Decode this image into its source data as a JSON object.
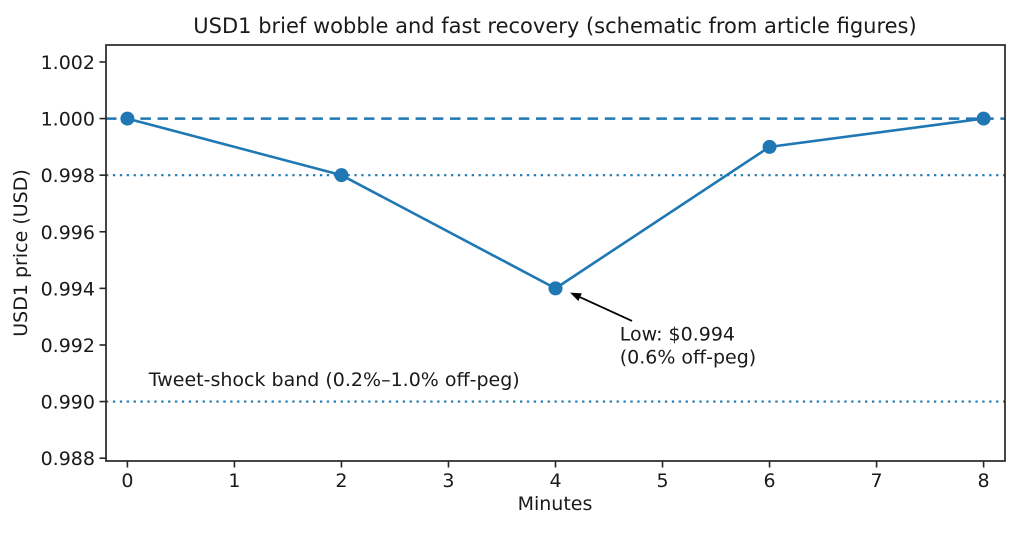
{
  "chart_data": {
    "type": "line",
    "title": "USD1 brief wobble and fast recovery (schematic from article figures)",
    "xlabel": "Minutes",
    "ylabel": "USD1 price (USD)",
    "x": [
      0,
      2,
      4,
      6,
      8
    ],
    "y": [
      1.0,
      0.998,
      0.994,
      0.999,
      1.0
    ],
    "xticks": [
      0,
      1,
      2,
      3,
      4,
      5,
      6,
      7,
      8
    ],
    "yticks": [
      0.988,
      0.99,
      0.992,
      0.994,
      0.996,
      0.998,
      1.0,
      1.002
    ],
    "ytick_decimals": 3,
    "xlim": [
      -0.2,
      8.2
    ],
    "ylim": [
      0.9879,
      1.0026
    ],
    "grid": false,
    "legend": null,
    "line_color": "#1f77b4",
    "marker_color": "#1f77b4",
    "marker": "circle",
    "reference_lines": [
      {
        "name": "peg-reference-line",
        "y": 1.0,
        "style": "dashed",
        "color": "#1f77b4"
      },
      {
        "name": "band-upper-line",
        "y": 0.998,
        "style": "dotted",
        "color": "#1f77b4"
      },
      {
        "name": "band-lower-line",
        "y": 0.99,
        "style": "dotted",
        "color": "#1f77b4"
      }
    ],
    "annotation": {
      "lines": [
        "Low: $0.994",
        "(0.6% off-peg)"
      ],
      "text_x": 4.6,
      "text_y": 0.99215,
      "arrow": {
        "x1": 4.715,
        "y1": 0.99285,
        "x2": 4.136,
        "y2": 0.99385
      },
      "color": "#000000"
    },
    "band_label": {
      "text": "Tweet-shock band (0.2%–1.0% off-peg)",
      "x": 0.2,
      "y": 0.99055
    }
  }
}
